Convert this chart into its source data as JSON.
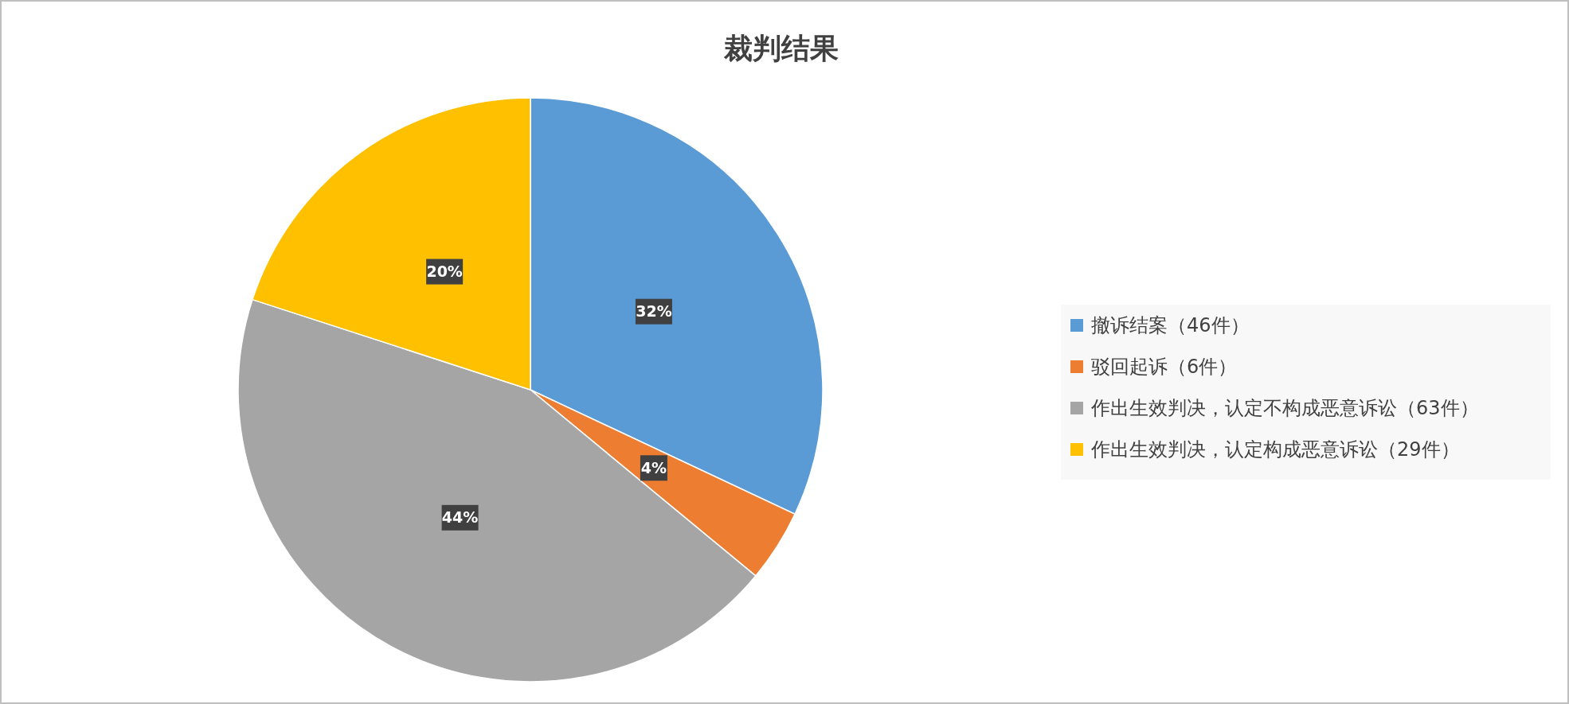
{
  "chart_data": {
    "type": "pie",
    "title": "裁判结果",
    "categories": [
      "撤诉结案（46件）",
      "驳回起诉（6件）",
      "作出生效判决，认定不构成恶意诉讼（63件）",
      "作出生效判决，认定构成恶意诉讼（29件）"
    ],
    "values": [
      32,
      4,
      44,
      20
    ],
    "colors": [
      "#5b9bd5",
      "#ed7d31",
      "#a5a5a5",
      "#ffc000"
    ],
    "value_labels": [
      "32%",
      "4%",
      "44%",
      "20%"
    ],
    "legend": "right"
  }
}
